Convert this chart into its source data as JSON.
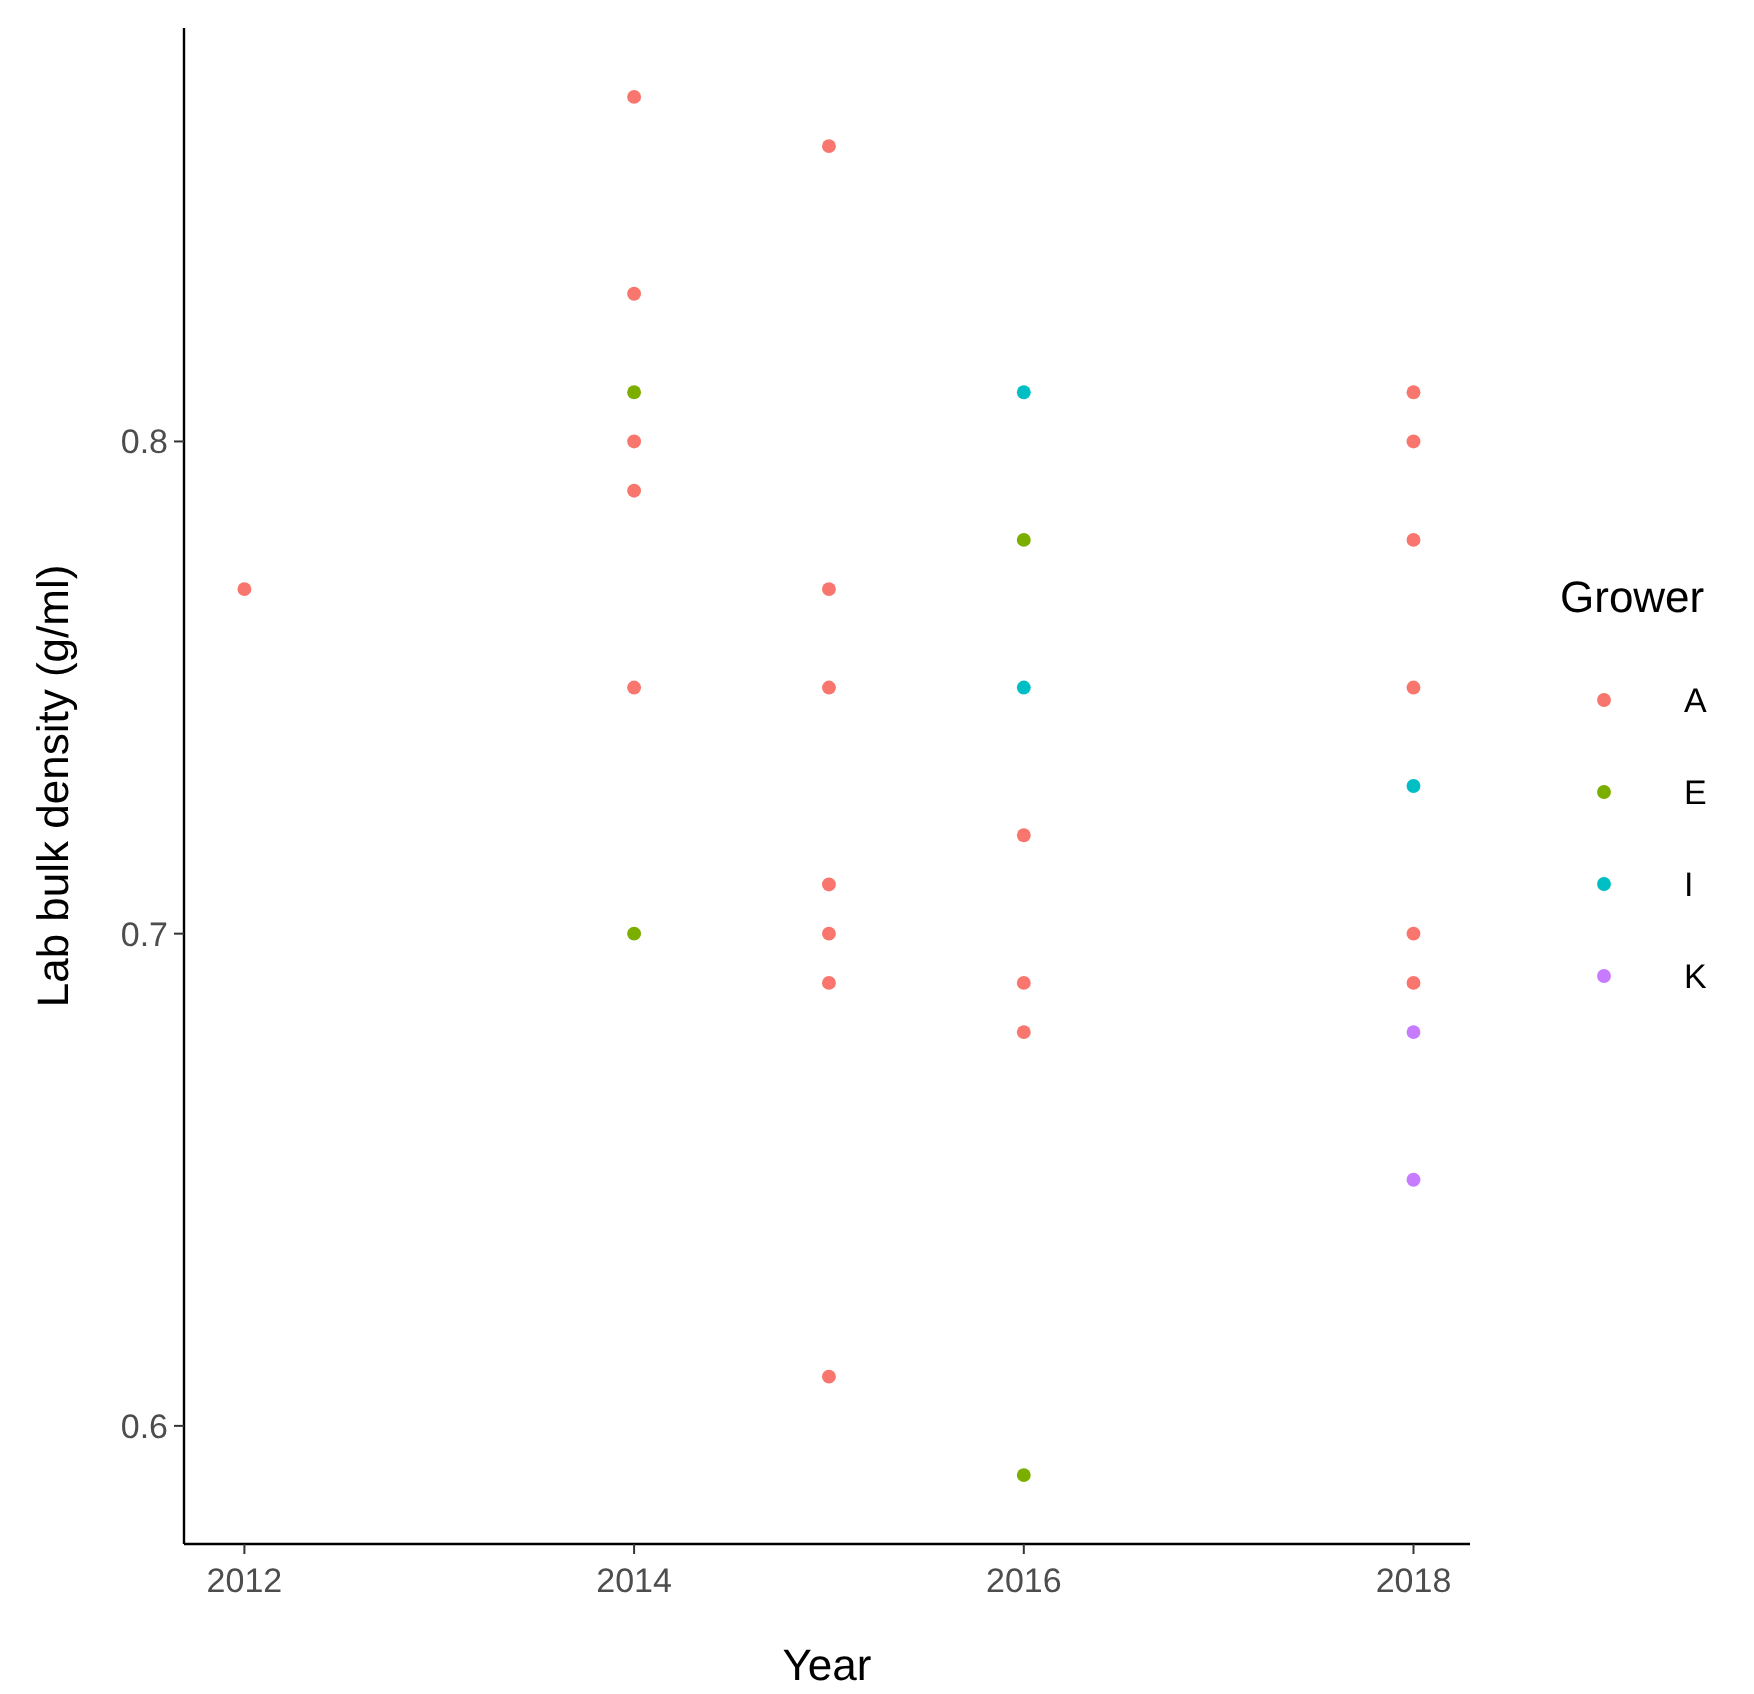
{
  "chart_data": {
    "type": "scatter",
    "xlabel": "Year",
    "ylabel": "Lab bulk density (g/ml)",
    "legend_title": "Grower",
    "legend": "right",
    "grid": false,
    "marker": "circle",
    "xlim": [
      2011.69,
      2018.29
    ],
    "xticks": [
      2012,
      2014,
      2016,
      2018
    ],
    "ylim": [
      0.576,
      0.884
    ],
    "yticks": [
      0.6,
      0.7,
      0.8
    ],
    "series": [
      {
        "name": "A",
        "color": "#f8766d",
        "x": [
          2012,
          2014,
          2014,
          2014,
          2014,
          2014,
          2015,
          2015,
          2015,
          2015,
          2015,
          2015,
          2015,
          2016,
          2016,
          2016,
          2018,
          2018,
          2018,
          2018,
          2018,
          2018
        ],
        "values": [
          0.77,
          0.87,
          0.83,
          0.8,
          0.79,
          0.75,
          0.86,
          0.77,
          0.75,
          0.71,
          0.7,
          0.69,
          0.61,
          0.72,
          0.69,
          0.68,
          0.81,
          0.8,
          0.78,
          0.75,
          0.7,
          0.69
        ]
      },
      {
        "name": "E",
        "color": "#7cae00",
        "x": [
          2014,
          2014,
          2016,
          2016
        ],
        "values": [
          0.81,
          0.7,
          0.78,
          0.59
        ]
      },
      {
        "name": "I",
        "color": "#00bfc4",
        "x": [
          2016,
          2016,
          2018
        ],
        "values": [
          0.81,
          0.75,
          0.73
        ]
      },
      {
        "name": "K",
        "color": "#c77cff",
        "x": [
          2018,
          2018
        ],
        "values": [
          0.68,
          0.65
        ]
      }
    ]
  }
}
